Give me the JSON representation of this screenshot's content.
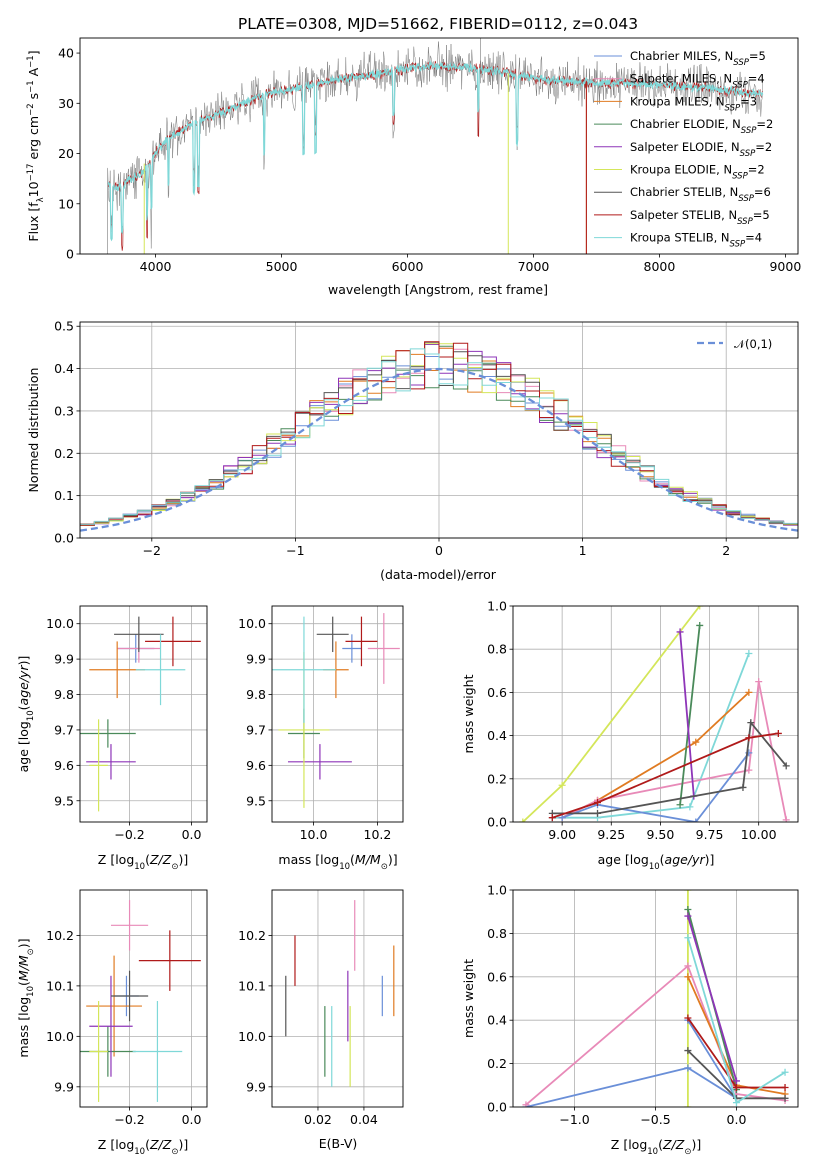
{
  "figure": {
    "title": "PLATE=0308, MJD=51662, FIBERID=0112, z=0.043"
  },
  "palette": {
    "Chabrier MILES": "#6a8fd8",
    "Salpeter MILES": "#e88ab8",
    "Kroupa MILES": "#e07b22",
    "Chabrier ELODIE": "#4a8a5a",
    "Salpeter ELODIE": "#8e35b8",
    "Kroupa ELODIE": "#d4e65a",
    "Chabrier STELIB": "#555555",
    "Salpeter STELIB": "#b01a1a",
    "Kroupa STELIB": "#7fd8d8"
  },
  "chart_data": [
    {
      "id": "spectrum",
      "type": "line",
      "title": "PLATE=0308, MJD=51662, FIBERID=0112, z=0.043",
      "xlabel": "wavelength [Angstrom, rest frame]",
      "ylabel": "Flux [f_λ 10^-17 erg cm^-2 s^-1 A^-1]",
      "xlim": [
        3400,
        9100
      ],
      "ylim": [
        0,
        43
      ],
      "xticks": [
        4000,
        5000,
        6000,
        7000,
        8000,
        9000
      ],
      "yticks": [
        0,
        10,
        20,
        30,
        40
      ],
      "legend_position": "upper right",
      "series": [
        {
          "name": "Chabrier MILES",
          "nssp": "5"
        },
        {
          "name": "Salpeter MILES",
          "nssp": "4"
        },
        {
          "name": "Kroupa MILES",
          "nssp": "3"
        },
        {
          "name": "Chabrier ELODIE",
          "nssp": "2"
        },
        {
          "name": "Salpeter ELODIE",
          "nssp": "2"
        },
        {
          "name": "Kroupa ELODIE",
          "nssp": "2"
        },
        {
          "name": "Chabrier STELIB",
          "nssp": "6"
        },
        {
          "name": "Salpeter STELIB",
          "nssp": "5"
        },
        {
          "name": "Kroupa STELIB",
          "nssp": "4"
        }
      ],
      "continuum": {
        "wavelength": [
          3620,
          3700,
          3800,
          3900,
          4000,
          4100,
          4300,
          4500,
          4700,
          4900,
          5100,
          5300,
          5500,
          5800,
          6000,
          6200,
          6500,
          6800,
          7000,
          7200,
          7500,
          7800,
          8100,
          8400,
          8700,
          8820
        ],
        "flux": [
          14,
          13,
          15,
          16,
          20,
          23,
          26,
          28,
          30,
          32,
          33,
          34,
          35,
          36,
          37,
          37.5,
          37,
          36,
          35,
          34.5,
          34,
          34,
          33.5,
          33,
          32,
          32
        ]
      },
      "model_cutoffs": [
        {
          "name": "Kroupa ELODIE",
          "until": 6800
        },
        {
          "name": "Kroupa MILES",
          "until": 7420
        },
        {
          "name": "Salpeter STELIB",
          "until": 7420
        }
      ]
    },
    {
      "id": "residuals",
      "type": "histogram",
      "xlabel": "(data-model)/error",
      "ylabel": "Normed distribution",
      "xlim": [
        -2.5,
        2.5
      ],
      "ylim": [
        0,
        0.51
      ],
      "xticks": [
        -2,
        -1,
        0,
        1,
        2
      ],
      "yticks": [
        0.0,
        0.1,
        0.2,
        0.3,
        0.4,
        0.5
      ],
      "grid": true,
      "reference_curve": {
        "name": "𝒩(0,1)",
        "style": "dashed"
      },
      "legend_position": "upper right",
      "bin_width": 0.1
    },
    {
      "id": "age_vs_Z",
      "type": "errorbar",
      "xlabel": "Z [log10(Z/Z⊙)]",
      "ylabel": "age [log10(age/yr)]",
      "xlim": [
        -0.36,
        0.05
      ],
      "ylim": [
        9.44,
        10.05
      ],
      "xticks": [
        -0.2,
        0.0
      ],
      "yticks": [
        9.5,
        9.6,
        9.7,
        9.8,
        9.9,
        10.0
      ],
      "grid": true,
      "points": [
        {
          "series": "Chabrier MILES",
          "x": -0.18,
          "xerr": 0.06,
          "y": 9.93,
          "yerr": 0.04
        },
        {
          "series": "Salpeter MILES",
          "x": -0.17,
          "xerr": 0.07,
          "y": 9.93,
          "yerr": 0.04
        },
        {
          "series": "Kroupa MILES",
          "x": -0.24,
          "xerr": 0.09,
          "y": 9.87,
          "yerr": 0.08
        },
        {
          "series": "Chabrier ELODIE",
          "x": -0.27,
          "xerr": 0.09,
          "y": 9.69,
          "yerr": 0.04
        },
        {
          "series": "Salpeter ELODIE",
          "x": -0.26,
          "xerr": 0.08,
          "y": 9.61,
          "yerr": 0.05
        },
        {
          "series": "Kroupa ELODIE",
          "x": -0.3,
          "xerr": 0.03,
          "y": 9.6,
          "yerr": 0.13
        },
        {
          "series": "Chabrier STELIB",
          "x": -0.17,
          "xerr": 0.08,
          "y": 9.97,
          "yerr": 0.05
        },
        {
          "series": "Salpeter STELIB",
          "x": -0.06,
          "xerr": 0.09,
          "y": 9.95,
          "yerr": 0.07
        },
        {
          "series": "Kroupa STELIB",
          "x": -0.1,
          "xerr": 0.08,
          "y": 9.87,
          "yerr": 0.1
        }
      ]
    },
    {
      "id": "age_vs_mass",
      "type": "errorbar",
      "xlabel": "mass [log10(M/M⊙)]",
      "ylabel": "",
      "xlim": [
        9.87,
        10.28
      ],
      "ylim": [
        9.44,
        10.05
      ],
      "xticks": [
        10.0,
        10.2
      ],
      "yticks": [
        9.5,
        9.6,
        9.7,
        9.8,
        9.9,
        10.0
      ],
      "grid": true,
      "points": [
        {
          "series": "Chabrier MILES",
          "x": 10.12,
          "xerr": 0.03,
          "y": 9.93,
          "yerr": 0.04
        },
        {
          "series": "Salpeter MILES",
          "x": 10.22,
          "xerr": 0.05,
          "y": 9.93,
          "yerr": 0.1
        },
        {
          "series": "Kroupa MILES",
          "x": 10.07,
          "xerr": 0.04,
          "y": 9.87,
          "yerr": 0.08
        },
        {
          "series": "Chabrier ELODIE",
          "x": 9.97,
          "xerr": 0.05,
          "y": 9.69,
          "yerr": 0.07
        },
        {
          "series": "Salpeter ELODIE",
          "x": 10.02,
          "xerr": 0.1,
          "y": 9.61,
          "yerr": 0.05
        },
        {
          "series": "Kroupa ELODIE",
          "x": 9.97,
          "xerr": 0.08,
          "y": 9.7,
          "yerr": 0.22
        },
        {
          "series": "Chabrier STELIB",
          "x": 10.06,
          "xerr": 0.05,
          "y": 9.97,
          "yerr": 0.05
        },
        {
          "series": "Salpeter STELIB",
          "x": 10.15,
          "xerr": 0.05,
          "y": 9.95,
          "yerr": 0.07
        },
        {
          "series": "Kroupa STELIB",
          "x": 9.97,
          "xerr": 0.1,
          "y": 9.87,
          "yerr": 0.15
        }
      ]
    },
    {
      "id": "weight_vs_age",
      "type": "line",
      "xlabel": "age [log10(age/yr)]",
      "ylabel": "mass weight",
      "xlim": [
        8.75,
        10.2
      ],
      "ylim": [
        0,
        1.0
      ],
      "xticks": [
        9.0,
        9.25,
        9.5,
        9.75,
        10.0
      ],
      "yticks": [
        0.0,
        0.2,
        0.4,
        0.6,
        0.8,
        1.0
      ],
      "grid": true,
      "series": [
        {
          "name": "Kroupa ELODIE",
          "x": [
            8.8,
            9.0,
            9.7
          ],
          "y": [
            0.0,
            0.17,
            1.0
          ]
        },
        {
          "name": "Kroupa STELIB",
          "x": [
            8.95,
            9.18,
            9.65,
            9.95
          ],
          "y": [
            0.02,
            0.02,
            0.07,
            0.78
          ]
        },
        {
          "name": "Kroupa MILES",
          "x": [
            9.0,
            9.18,
            9.68,
            9.95
          ],
          "y": [
            0.02,
            0.1,
            0.37,
            0.6
          ]
        },
        {
          "name": "Salpeter MILES",
          "x": [
            9.0,
            9.18,
            9.95,
            10.0,
            10.14
          ],
          "y": [
            0.02,
            0.1,
            0.24,
            0.65,
            0.01
          ]
        },
        {
          "name": "Chabrier MILES",
          "x": [
            9.0,
            9.18,
            9.68,
            9.95
          ],
          "y": [
            0.02,
            0.08,
            0.0,
            0.32
          ]
        },
        {
          "name": "Chabrier ELODIE",
          "x": [
            9.6,
            9.7
          ],
          "y": [
            0.08,
            0.91
          ]
        },
        {
          "name": "Salpeter ELODIE",
          "x": [
            9.6,
            9.67
          ],
          "y": [
            0.88,
            0.12
          ]
        },
        {
          "name": "Chabrier STELIB",
          "x": [
            8.95,
            9.18,
            9.92,
            9.96,
            10.14
          ],
          "y": [
            0.04,
            0.04,
            0.16,
            0.46,
            0.26
          ]
        },
        {
          "name": "Salpeter STELIB",
          "x": [
            8.95,
            9.18,
            9.95,
            10.1
          ],
          "y": [
            0.02,
            0.09,
            0.39,
            0.41
          ]
        }
      ]
    },
    {
      "id": "mass_vs_Z",
      "type": "errorbar",
      "xlabel": "Z [log10(Z/Z⊙)]",
      "ylabel": "mass [log10(M/M⊙)]",
      "xlim": [
        -0.36,
        0.05
      ],
      "ylim": [
        9.86,
        10.29
      ],
      "xticks": [
        -0.2,
        0.0
      ],
      "yticks": [
        9.9,
        10.0,
        10.1,
        10.2
      ],
      "grid": true,
      "points": [
        {
          "series": "Chabrier MILES",
          "x": -0.21,
          "xerr": 0.04,
          "y": 10.08,
          "yerr": 0.04
        },
        {
          "series": "Salpeter MILES",
          "x": -0.2,
          "xerr": 0.06,
          "y": 10.22,
          "yerr": 0.05
        },
        {
          "series": "Kroupa MILES",
          "x": -0.25,
          "xerr": 0.09,
          "y": 10.06,
          "yerr": 0.1
        },
        {
          "series": "Chabrier ELODIE",
          "x": -0.27,
          "xerr": 0.09,
          "y": 9.97,
          "yerr": 0.05
        },
        {
          "series": "Salpeter ELODIE",
          "x": -0.26,
          "xerr": 0.07,
          "y": 10.02,
          "yerr": 0.1
        },
        {
          "series": "Kroupa ELODIE",
          "x": -0.3,
          "xerr": 0.03,
          "y": 9.97,
          "yerr": 0.1
        },
        {
          "series": "Chabrier STELIB",
          "x": -0.2,
          "xerr": 0.06,
          "y": 10.08,
          "yerr": 0.05
        },
        {
          "series": "Salpeter STELIB",
          "x": -0.07,
          "xerr": 0.1,
          "y": 10.15,
          "yerr": 0.06
        },
        {
          "series": "Kroupa STELIB",
          "x": -0.11,
          "xerr": 0.08,
          "y": 9.97,
          "yerr": 0.1
        }
      ]
    },
    {
      "id": "mass_vs_ebv",
      "type": "errorbar",
      "xlabel": "E(B-V)",
      "ylabel": "",
      "xlim": [
        0.0,
        0.057
      ],
      "ylim": [
        9.86,
        10.29
      ],
      "xticks": [
        0.02,
        0.04
      ],
      "yticks": [
        9.9,
        10.0,
        10.1,
        10.2
      ],
      "grid": true,
      "points": [
        {
          "series": "Chabrier MILES",
          "x": 0.048,
          "y": 10.08,
          "yerr": 0.04
        },
        {
          "series": "Salpeter MILES",
          "x": 0.036,
          "y": 10.2,
          "yerr": 0.07
        },
        {
          "series": "Kroupa MILES",
          "x": 0.053,
          "y": 10.11,
          "yerr": 0.07
        },
        {
          "series": "Chabrier ELODIE",
          "x": 0.023,
          "y": 9.99,
          "yerr": 0.07
        },
        {
          "series": "Salpeter ELODIE",
          "x": 0.033,
          "y": 10.06,
          "yerr": 0.07
        },
        {
          "series": "Kroupa ELODIE",
          "x": 0.034,
          "y": 9.98,
          "yerr": 0.08
        },
        {
          "series": "Chabrier STELIB",
          "x": 0.006,
          "y": 10.06,
          "yerr": 0.06
        },
        {
          "series": "Salpeter STELIB",
          "x": 0.01,
          "y": 10.15,
          "yerr": 0.05
        },
        {
          "series": "Kroupa STELIB",
          "x": 0.026,
          "y": 9.98,
          "yerr": 0.08
        }
      ]
    },
    {
      "id": "weight_vs_Z",
      "type": "line",
      "xlabel": "Z [log10(Z/Z⊙)]",
      "ylabel": "mass weight",
      "xlim": [
        -1.38,
        0.38
      ],
      "ylim": [
        0,
        1.0
      ],
      "xticks": [
        -1.0,
        -0.5,
        0.0
      ],
      "yticks": [
        0.0,
        0.2,
        0.4,
        0.6,
        0.8,
        1.0
      ],
      "grid": true,
      "series": [
        {
          "name": "Kroupa ELODIE",
          "x": [
            -0.3,
            -0.3
          ],
          "y": [
            0.0,
            1.0
          ]
        },
        {
          "name": "Chabrier MILES",
          "x": [
            -1.3,
            -0.3,
            0.0,
            -0.3
          ],
          "y": [
            0.0,
            0.18,
            0.04,
            0.4
          ]
        },
        {
          "name": "Salpeter MILES",
          "x": [
            -1.3,
            -0.3,
            0.0,
            0.3
          ],
          "y": [
            0.01,
            0.65,
            0.06,
            0.03
          ]
        },
        {
          "name": "Kroupa MILES",
          "x": [
            -0.3,
            0.0,
            0.3
          ],
          "y": [
            0.6,
            0.1,
            0.06
          ]
        },
        {
          "name": "Chabrier ELODIE",
          "x": [
            -0.3,
            0.0
          ],
          "y": [
            0.91,
            0.08
          ]
        },
        {
          "name": "Salpeter ELODIE",
          "x": [
            -0.3,
            0.0
          ],
          "y": [
            0.88,
            0.12
          ]
        },
        {
          "name": "Chabrier STELIB",
          "x": [
            -0.3,
            0.0,
            0.3
          ],
          "y": [
            0.26,
            0.04,
            0.04
          ]
        },
        {
          "name": "Salpeter STELIB",
          "x": [
            -0.3,
            0.0,
            0.3
          ],
          "y": [
            0.41,
            0.09,
            0.09
          ]
        },
        {
          "name": "Kroupa STELIB",
          "x": [
            -0.3,
            0.0,
            0.3
          ],
          "y": [
            0.78,
            0.02,
            0.16
          ]
        }
      ]
    }
  ]
}
